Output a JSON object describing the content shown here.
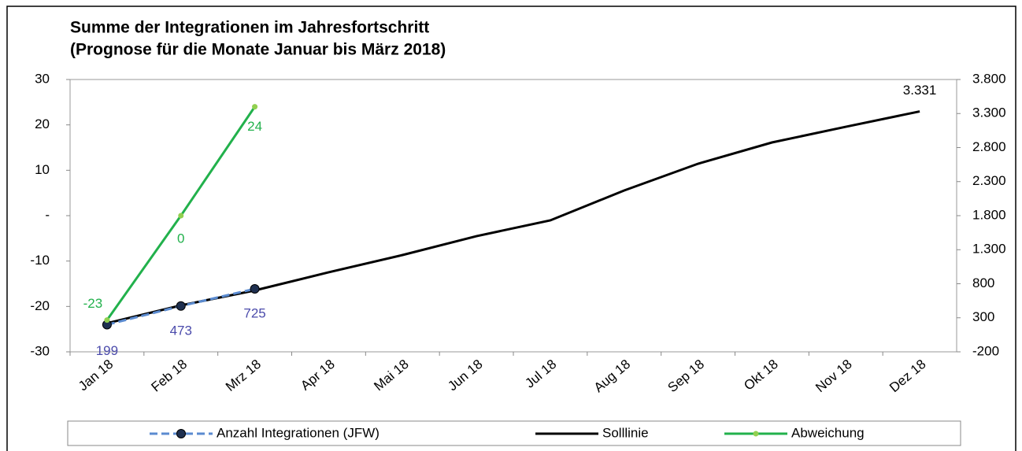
{
  "chart_data": {
    "type": "line",
    "title": "Summe der Integrationen im Jahresfortschritt",
    "subtitle": "(Prognose für die Monate Januar bis März 2018)",
    "categories": [
      "Jan 18",
      "Feb 18",
      "Mrz 18",
      "Apr 18",
      "Mai 18",
      "Jun 18",
      "Jul 18",
      "Aug 18",
      "Sep 18",
      "Okt 18",
      "Nov 18",
      "Dez 18"
    ],
    "series": [
      {
        "name": "Anzahl Integrationen (JFW)",
        "color": "#5b8bd0",
        "marker_color": "#1f3050",
        "label_color": "#4b4bab",
        "axis": "y2",
        "dashed": true,
        "values": [
          199,
          473,
          725,
          null,
          null,
          null,
          null,
          null,
          null,
          null,
          null,
          null
        ]
      },
      {
        "name": "Solllinie",
        "color": "#000000",
        "axis": "y2",
        "values": [
          220,
          482,
          702,
          968,
          1222,
          1499,
          1731,
          2170,
          2563,
          2875,
          3106,
          3331
        ],
        "value_labels": [
          null,
          null,
          null,
          null,
          null,
          null,
          null,
          null,
          null,
          null,
          null,
          "3.331"
        ]
      },
      {
        "name": "Abweichung",
        "color": "#22b14c",
        "marker_color": "#92d050",
        "label_color": "#22b14c",
        "axis": "y",
        "values": [
          -23,
          0,
          24,
          null,
          null,
          null,
          null,
          null,
          null,
          null,
          null,
          null
        ]
      }
    ],
    "ylim": [
      -30,
      30
    ],
    "yticks": [
      -30,
      -20,
      -10,
      {
        "value": 0,
        "label": "-"
      },
      10,
      20,
      30
    ],
    "y2lim": [
      -200,
      3800
    ],
    "y2ticks": [
      -200,
      300,
      800,
      {
        "value": 1300,
        "label": "1.300"
      },
      {
        "value": 1800,
        "label": "1.800"
      },
      {
        "value": 2300,
        "label": "2.300"
      },
      {
        "value": 2800,
        "label": "2.800"
      },
      {
        "value": 3300,
        "label": "3.300"
      },
      {
        "value": 3800,
        "label": "3.800"
      }
    ],
    "legend": "bottom"
  }
}
